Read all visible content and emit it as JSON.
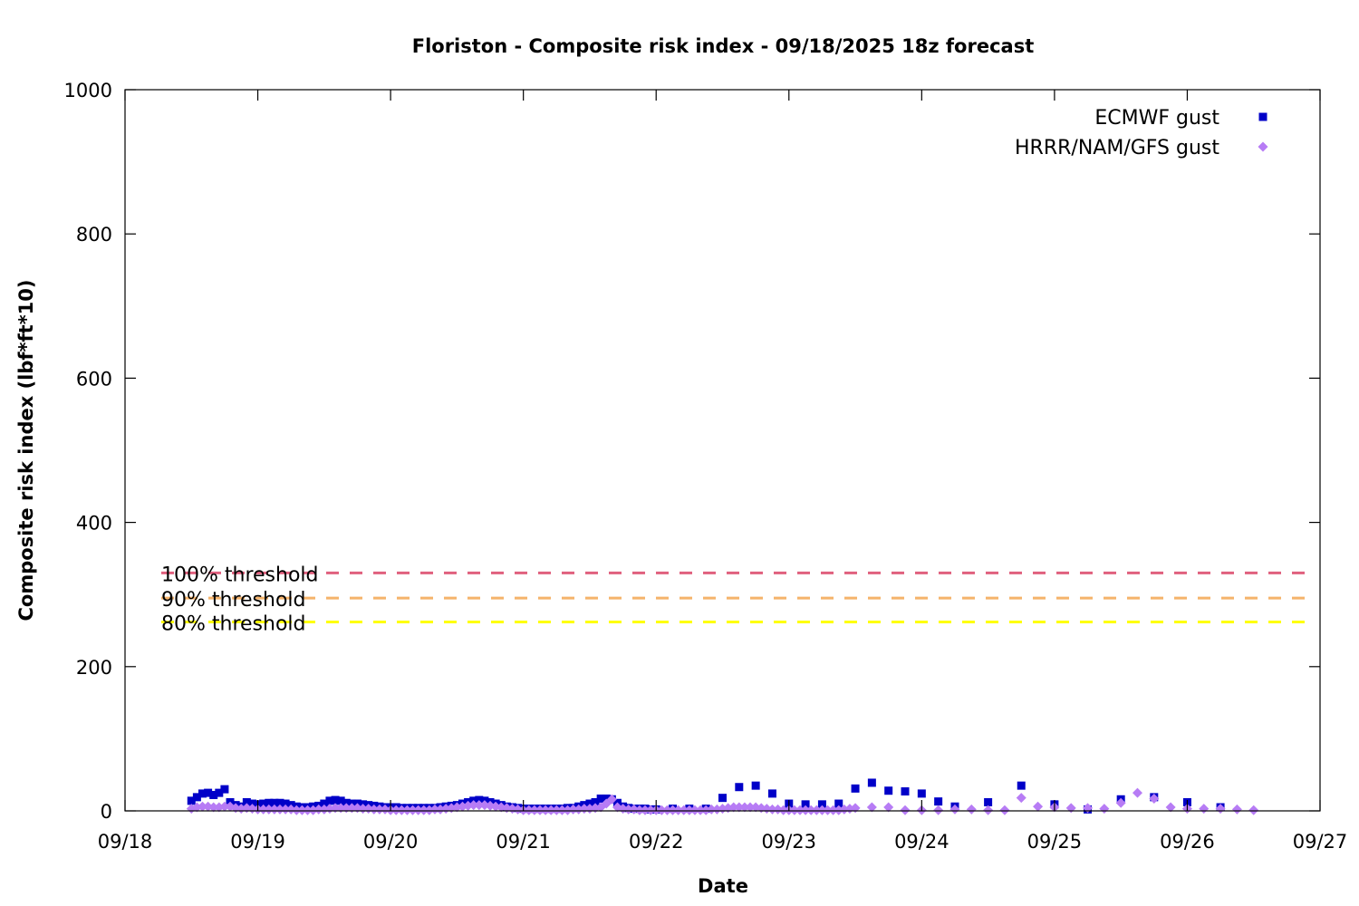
{
  "chart_data": {
    "type": "scatter",
    "title": "Floriston - Composite risk index - 09/18/2025 18z forecast",
    "xlabel": "Date",
    "ylabel": "Composite risk index (lbf*ft*10)",
    "xlim": [
      "09/18",
      "09/27"
    ],
    "ylim": [
      0,
      1000
    ],
    "x_ticks": [
      "09/18",
      "09/19",
      "09/20",
      "09/21",
      "09/22",
      "09/23",
      "09/24",
      "09/25",
      "09/26",
      "09/27"
    ],
    "y_ticks": [
      0,
      200,
      400,
      600,
      800,
      1000
    ],
    "grid": false,
    "legend_position": "top-right",
    "thresholds": [
      {
        "label": "100% threshold",
        "value": 330,
        "color": "#e0607e"
      },
      {
        "label": "90% threshold",
        "value": 295,
        "color": "#f5b36b"
      },
      {
        "label": "80% threshold",
        "value": 262,
        "color": "#ffff00"
      }
    ],
    "series": [
      {
        "name": "ECMWF gust",
        "marker": "square",
        "color": "#0000c8",
        "points": [
          [
            "09/18 12:00",
            14
          ],
          [
            "09/18 13:00",
            19
          ],
          [
            "09/18 14:00",
            24
          ],
          [
            "09/18 15:00",
            25
          ],
          [
            "09/18 16:00",
            22
          ],
          [
            "09/18 17:00",
            25
          ],
          [
            "09/18 18:00",
            30
          ],
          [
            "09/18 19:00",
            12
          ],
          [
            "09/18 20:00",
            8
          ],
          [
            "09/18 21:00",
            6
          ],
          [
            "09/18 22:00",
            12
          ],
          [
            "09/18 23:00",
            10
          ],
          [
            "09/19 00:00",
            9
          ],
          [
            "09/19 01:00",
            10
          ],
          [
            "09/19 02:00",
            11
          ],
          [
            "09/19 03:00",
            11
          ],
          [
            "09/19 04:00",
            11
          ],
          [
            "09/19 05:00",
            10
          ],
          [
            "09/19 06:00",
            8
          ],
          [
            "09/19 07:00",
            6
          ],
          [
            "09/19 08:00",
            5
          ],
          [
            "09/19 09:00",
            5
          ],
          [
            "09/19 10:00",
            6
          ],
          [
            "09/19 11:00",
            7
          ],
          [
            "09/19 12:00",
            10
          ],
          [
            "09/19 13:00",
            14
          ],
          [
            "09/19 14:00",
            15
          ],
          [
            "09/19 15:00",
            14
          ],
          [
            "09/19 16:00",
            11
          ],
          [
            "09/19 17:00",
            10
          ],
          [
            "09/19 18:00",
            10
          ],
          [
            "09/19 19:00",
            9
          ],
          [
            "09/19 20:00",
            8
          ],
          [
            "09/19 21:00",
            7
          ],
          [
            "09/19 22:00",
            6
          ],
          [
            "09/19 23:00",
            5
          ],
          [
            "09/20 00:00",
            5
          ],
          [
            "09/20 01:00",
            5
          ],
          [
            "09/20 02:00",
            4
          ],
          [
            "09/20 03:00",
            4
          ],
          [
            "09/20 04:00",
            4
          ],
          [
            "09/20 05:00",
            4
          ],
          [
            "09/20 06:00",
            4
          ],
          [
            "09/20 07:00",
            4
          ],
          [
            "09/20 08:00",
            4
          ],
          [
            "09/20 09:00",
            5
          ],
          [
            "09/20 10:00",
            6
          ],
          [
            "09/20 11:00",
            7
          ],
          [
            "09/20 12:00",
            8
          ],
          [
            "09/20 13:00",
            10
          ],
          [
            "09/20 14:00",
            12
          ],
          [
            "09/20 15:00",
            14
          ],
          [
            "09/20 16:00",
            15
          ],
          [
            "09/20 17:00",
            14
          ],
          [
            "09/20 18:00",
            12
          ],
          [
            "09/20 19:00",
            10
          ],
          [
            "09/20 20:00",
            8
          ],
          [
            "09/20 21:00",
            6
          ],
          [
            "09/20 22:00",
            5
          ],
          [
            "09/20 23:00",
            4
          ],
          [
            "09/21 00:00",
            3
          ],
          [
            "09/21 01:00",
            3
          ],
          [
            "09/21 02:00",
            3
          ],
          [
            "09/21 03:00",
            3
          ],
          [
            "09/21 04:00",
            3
          ],
          [
            "09/21 05:00",
            3
          ],
          [
            "09/21 06:00",
            3
          ],
          [
            "09/21 07:00",
            3
          ],
          [
            "09/21 08:00",
            4
          ],
          [
            "09/21 09:00",
            4
          ],
          [
            "09/21 10:00",
            6
          ],
          [
            "09/21 11:00",
            8
          ],
          [
            "09/21 12:00",
            10
          ],
          [
            "09/21 13:00",
            12
          ],
          [
            "09/21 14:00",
            17
          ],
          [
            "09/21 15:00",
            17
          ],
          [
            "09/21 16:00",
            16
          ],
          [
            "09/21 17:00",
            11
          ],
          [
            "09/21 18:00",
            6
          ],
          [
            "09/21 19:00",
            4
          ],
          [
            "09/21 20:00",
            3
          ],
          [
            "09/21 21:00",
            3
          ],
          [
            "09/21 22:00",
            3
          ],
          [
            "09/21 23:00",
            2
          ],
          [
            "09/22 00:00",
            2
          ],
          [
            "09/22 03:00",
            3
          ],
          [
            "09/22 06:00",
            3
          ],
          [
            "09/22 09:00",
            3
          ],
          [
            "09/22 12:00",
            18
          ],
          [
            "09/22 15:00",
            33
          ],
          [
            "09/22 18:00",
            35
          ],
          [
            "09/22 21:00",
            24
          ],
          [
            "09/23 00:00",
            10
          ],
          [
            "09/23 03:00",
            9
          ],
          [
            "09/23 06:00",
            9
          ],
          [
            "09/23 09:00",
            10
          ],
          [
            "09/23 12:00",
            31
          ],
          [
            "09/23 15:00",
            39
          ],
          [
            "09/23 18:00",
            28
          ],
          [
            "09/23 21:00",
            27
          ],
          [
            "09/24 00:00",
            24
          ],
          [
            "09/24 03:00",
            13
          ],
          [
            "09/24 06:00",
            6
          ],
          [
            "09/24 12:00",
            12
          ],
          [
            "09/24 18:00",
            35
          ],
          [
            "09/25 00:00",
            9
          ],
          [
            "09/25 06:00",
            2
          ],
          [
            "09/25 12:00",
            16
          ],
          [
            "09/25 18:00",
            19
          ],
          [
            "09/26 00:00",
            12
          ],
          [
            "09/26 06:00",
            5
          ]
        ]
      },
      {
        "name": "HRRR/NAM/GFS gust",
        "marker": "diamond",
        "color": "#b77cf5",
        "points": [
          [
            "09/18 12:00",
            3
          ],
          [
            "09/18 13:00",
            5
          ],
          [
            "09/18 14:00",
            6
          ],
          [
            "09/18 15:00",
            6
          ],
          [
            "09/18 16:00",
            5
          ],
          [
            "09/18 17:00",
            5
          ],
          [
            "09/18 18:00",
            6
          ],
          [
            "09/18 19:00",
            6
          ],
          [
            "09/18 20:00",
            4
          ],
          [
            "09/18 21:00",
            3
          ],
          [
            "09/18 22:00",
            4
          ],
          [
            "09/18 23:00",
            3
          ],
          [
            "09/19 00:00",
            2
          ],
          [
            "09/19 01:00",
            2
          ],
          [
            "09/19 02:00",
            2
          ],
          [
            "09/19 03:00",
            2
          ],
          [
            "09/19 04:00",
            2
          ],
          [
            "09/19 05:00",
            2
          ],
          [
            "09/19 06:00",
            2
          ],
          [
            "09/19 07:00",
            1
          ],
          [
            "09/19 08:00",
            1
          ],
          [
            "09/19 09:00",
            1
          ],
          [
            "09/19 10:00",
            1
          ],
          [
            "09/19 11:00",
            2
          ],
          [
            "09/19 12:00",
            2
          ],
          [
            "09/19 13:00",
            3
          ],
          [
            "09/19 14:00",
            4
          ],
          [
            "09/19 15:00",
            4
          ],
          [
            "09/19 16:00",
            4
          ],
          [
            "09/19 17:00",
            4
          ],
          [
            "09/19 18:00",
            4
          ],
          [
            "09/19 19:00",
            3
          ],
          [
            "09/19 20:00",
            3
          ],
          [
            "09/19 21:00",
            2
          ],
          [
            "09/19 22:00",
            2
          ],
          [
            "09/19 23:00",
            2
          ],
          [
            "09/20 00:00",
            1
          ],
          [
            "09/20 01:00",
            1
          ],
          [
            "09/20 02:00",
            1
          ],
          [
            "09/20 03:00",
            1
          ],
          [
            "09/20 04:00",
            1
          ],
          [
            "09/20 05:00",
            1
          ],
          [
            "09/20 06:00",
            1
          ],
          [
            "09/20 07:00",
            1
          ],
          [
            "09/20 08:00",
            2
          ],
          [
            "09/20 09:00",
            2
          ],
          [
            "09/20 10:00",
            3
          ],
          [
            "09/20 11:00",
            4
          ],
          [
            "09/20 12:00",
            5
          ],
          [
            "09/20 13:00",
            6
          ],
          [
            "09/20 14:00",
            7
          ],
          [
            "09/20 15:00",
            8
          ],
          [
            "09/20 16:00",
            8
          ],
          [
            "09/20 17:00",
            8
          ],
          [
            "09/20 18:00",
            7
          ],
          [
            "09/20 19:00",
            6
          ],
          [
            "09/20 20:00",
            5
          ],
          [
            "09/20 21:00",
            4
          ],
          [
            "09/20 22:00",
            3
          ],
          [
            "09/20 23:00",
            2
          ],
          [
            "09/21 00:00",
            1
          ],
          [
            "09/21 01:00",
            1
          ],
          [
            "09/21 02:00",
            1
          ],
          [
            "09/21 03:00",
            1
          ],
          [
            "09/21 04:00",
            1
          ],
          [
            "09/21 05:00",
            1
          ],
          [
            "09/21 06:00",
            1
          ],
          [
            "09/21 07:00",
            1
          ],
          [
            "09/21 08:00",
            1
          ],
          [
            "09/21 09:00",
            2
          ],
          [
            "09/21 10:00",
            2
          ],
          [
            "09/21 11:00",
            3
          ],
          [
            "09/21 12:00",
            3
          ],
          [
            "09/21 13:00",
            4
          ],
          [
            "09/21 14:00",
            5
          ],
          [
            "09/21 15:00",
            10
          ],
          [
            "09/21 16:00",
            16
          ],
          [
            "09/21 17:00",
            5
          ],
          [
            "09/21 18:00",
            3
          ],
          [
            "09/21 19:00",
            2
          ],
          [
            "09/21 20:00",
            2
          ],
          [
            "09/21 21:00",
            1
          ],
          [
            "09/21 22:00",
            1
          ],
          [
            "09/21 23:00",
            1
          ],
          [
            "09/22 00:00",
            1
          ],
          [
            "09/22 01:00",
            1
          ],
          [
            "09/22 02:00",
            1
          ],
          [
            "09/22 03:00",
            1
          ],
          [
            "09/22 04:00",
            1
          ],
          [
            "09/22 05:00",
            1
          ],
          [
            "09/22 06:00",
            1
          ],
          [
            "09/22 07:00",
            1
          ],
          [
            "09/22 08:00",
            1
          ],
          [
            "09/22 09:00",
            1
          ],
          [
            "09/22 10:00",
            2
          ],
          [
            "09/22 11:00",
            2
          ],
          [
            "09/22 12:00",
            3
          ],
          [
            "09/22 13:00",
            4
          ],
          [
            "09/22 14:00",
            5
          ],
          [
            "09/22 15:00",
            5
          ],
          [
            "09/22 16:00",
            5
          ],
          [
            "09/22 17:00",
            5
          ],
          [
            "09/22 18:00",
            5
          ],
          [
            "09/22 19:00",
            4
          ],
          [
            "09/22 20:00",
            3
          ],
          [
            "09/22 21:00",
            2
          ],
          [
            "09/22 22:00",
            2
          ],
          [
            "09/22 23:00",
            1
          ],
          [
            "09/23 00:00",
            1
          ],
          [
            "09/23 01:00",
            1
          ],
          [
            "09/23 02:00",
            1
          ],
          [
            "09/23 03:00",
            1
          ],
          [
            "09/23 04:00",
            1
          ],
          [
            "09/23 05:00",
            1
          ],
          [
            "09/23 06:00",
            1
          ],
          [
            "09/23 07:00",
            1
          ],
          [
            "09/23 08:00",
            1
          ],
          [
            "09/23 09:00",
            1
          ],
          [
            "09/23 10:00",
            2
          ],
          [
            "09/23 11:00",
            3
          ],
          [
            "09/23 12:00",
            4
          ],
          [
            "09/23 15:00",
            5
          ],
          [
            "09/23 18:00",
            5
          ],
          [
            "09/23 21:00",
            1
          ],
          [
            "09/24 00:00",
            1
          ],
          [
            "09/24 03:00",
            1
          ],
          [
            "09/24 06:00",
            2
          ],
          [
            "09/24 09:00",
            2
          ],
          [
            "09/24 12:00",
            1
          ],
          [
            "09/24 15:00",
            1
          ],
          [
            "09/24 18:00",
            18
          ],
          [
            "09/24 21:00",
            6
          ],
          [
            "09/25 00:00",
            5
          ],
          [
            "09/25 03:00",
            4
          ],
          [
            "09/25 06:00",
            4
          ],
          [
            "09/25 09:00",
            3
          ],
          [
            "09/25 12:00",
            11
          ],
          [
            "09/25 15:00",
            25
          ],
          [
            "09/25 18:00",
            17
          ],
          [
            "09/25 21:00",
            5
          ],
          [
            "09/26 00:00",
            3
          ],
          [
            "09/26 03:00",
            3
          ],
          [
            "09/26 06:00",
            3
          ],
          [
            "09/26 09:00",
            2
          ],
          [
            "09/26 12:00",
            1
          ]
        ]
      }
    ]
  }
}
